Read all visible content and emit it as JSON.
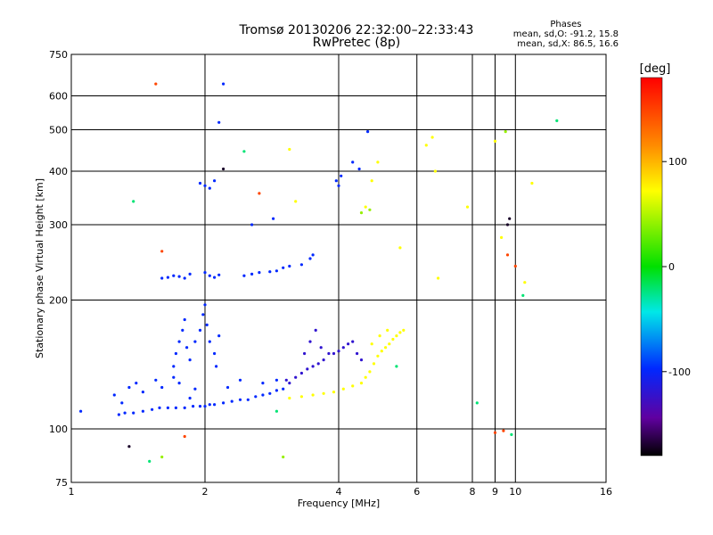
{
  "chart_data": {
    "type": "scatter",
    "title": "Tromsø 20130206 22:32:00–22:33:43",
    "subtitle": "RwPretec (8p)",
    "xlabel": "Frequency [MHz]",
    "ylabel": "Stationary phase Virtual Height [km]",
    "xscale": "log",
    "yscale": "log",
    "xlim": [
      1,
      16
    ],
    "ylim": [
      75,
      750
    ],
    "xticks": [
      1,
      2,
      4,
      6,
      8,
      9,
      10,
      16
    ],
    "xtick_labels": [
      "1",
      "2",
      "4",
      "6",
      "8",
      "9",
      "10",
      "16"
    ],
    "yticks": [
      75,
      100,
      200,
      300,
      400,
      500,
      600,
      750
    ],
    "ytick_labels": [
      "75",
      "100",
      "200",
      "300",
      "400",
      "500",
      "600",
      "750"
    ],
    "grid": true,
    "colorbar": {
      "label": "[deg]",
      "range": [
        -180,
        180
      ],
      "ticks": [
        100,
        0,
        -100
      ],
      "tick_labels": [
        "100",
        "0",
        "-100"
      ]
    },
    "phases_box": {
      "header": "Phases",
      "line1": "mean, sd,O: -91.2, 15.8",
      "line2": "mean, sd,X:  86.5, 16.6"
    },
    "series": [
      {
        "phase": -100,
        "points": [
          [
            1.05,
            110
          ],
          [
            1.28,
            108
          ],
          [
            1.32,
            109
          ],
          [
            1.38,
            109
          ],
          [
            1.45,
            110
          ],
          [
            1.52,
            111
          ],
          [
            1.58,
            112
          ],
          [
            1.65,
            112
          ],
          [
            1.72,
            112
          ],
          [
            1.8,
            112
          ],
          [
            1.88,
            113
          ],
          [
            1.95,
            113
          ],
          [
            2.0,
            113
          ],
          [
            2.05,
            114
          ],
          [
            2.1,
            114
          ],
          [
            2.2,
            115
          ],
          [
            2.3,
            116
          ],
          [
            2.4,
            117
          ],
          [
            2.5,
            117
          ],
          [
            2.6,
            119
          ],
          [
            2.7,
            120
          ],
          [
            2.8,
            121
          ],
          [
            2.9,
            123
          ],
          [
            3.0,
            124
          ]
        ]
      },
      {
        "phase": -100,
        "points": [
          [
            1.25,
            120
          ],
          [
            1.3,
            115
          ],
          [
            1.35,
            125
          ],
          [
            1.4,
            128
          ],
          [
            1.45,
            122
          ],
          [
            1.55,
            130
          ],
          [
            1.6,
            125
          ],
          [
            1.7,
            132
          ],
          [
            1.75,
            128
          ],
          [
            1.85,
            118
          ],
          [
            1.9,
            124
          ],
          [
            2.25,
            125
          ],
          [
            2.4,
            130
          ],
          [
            2.7,
            128
          ],
          [
            2.9,
            130
          ]
        ]
      },
      {
        "phase": -100,
        "points": [
          [
            1.7,
            140
          ],
          [
            1.72,
            150
          ],
          [
            1.75,
            160
          ],
          [
            1.78,
            170
          ],
          [
            1.8,
            180
          ],
          [
            1.82,
            155
          ],
          [
            1.85,
            145
          ],
          [
            1.9,
            160
          ],
          [
            1.95,
            170
          ],
          [
            1.98,
            185
          ],
          [
            2.0,
            195
          ],
          [
            2.02,
            175
          ],
          [
            2.05,
            160
          ],
          [
            2.1,
            150
          ],
          [
            2.12,
            140
          ],
          [
            2.15,
            165
          ]
        ]
      },
      {
        "phase": -100,
        "points": [
          [
            1.6,
            225
          ],
          [
            1.65,
            226
          ],
          [
            1.7,
            228
          ],
          [
            1.75,
            227
          ],
          [
            1.8,
            225
          ],
          [
            1.85,
            230
          ],
          [
            2.0,
            232
          ],
          [
            2.05,
            228
          ],
          [
            2.1,
            226
          ],
          [
            2.15,
            229
          ],
          [
            2.45,
            228
          ],
          [
            2.55,
            230
          ],
          [
            2.65,
            232
          ],
          [
            2.8,
            233
          ],
          [
            2.9,
            234
          ],
          [
            3.0,
            238
          ],
          [
            3.1,
            240
          ],
          [
            3.3,
            242
          ],
          [
            3.45,
            250
          ],
          [
            3.5,
            255
          ]
        ]
      },
      {
        "phase": -100,
        "points": [
          [
            2.0,
            370
          ],
          [
            2.05,
            365
          ],
          [
            2.1,
            380
          ],
          [
            1.95,
            375
          ],
          [
            3.95,
            380
          ],
          [
            4.0,
            370
          ],
          [
            4.05,
            390
          ],
          [
            4.3,
            420
          ],
          [
            4.45,
            405
          ],
          [
            2.15,
            520
          ],
          [
            2.2,
            640
          ],
          [
            2.55,
            300
          ],
          [
            2.85,
            310
          ],
          [
            4.65,
            495
          ]
        ]
      },
      {
        "phase": -120,
        "points": [
          [
            3.05,
            130
          ],
          [
            3.1,
            128
          ],
          [
            3.2,
            132
          ],
          [
            3.3,
            135
          ],
          [
            3.4,
            138
          ],
          [
            3.5,
            140
          ],
          [
            3.6,
            142
          ],
          [
            3.7,
            145
          ],
          [
            3.8,
            150
          ],
          [
            3.9,
            150
          ],
          [
            4.0,
            152
          ],
          [
            4.1,
            155
          ],
          [
            4.2,
            158
          ],
          [
            4.3,
            160
          ],
          [
            3.35,
            150
          ],
          [
            3.45,
            160
          ],
          [
            3.55,
            170
          ],
          [
            3.65,
            155
          ],
          [
            4.4,
            150
          ],
          [
            4.5,
            145
          ]
        ]
      },
      {
        "phase": 90,
        "points": [
          [
            3.1,
            118
          ],
          [
            3.3,
            119
          ],
          [
            3.5,
            120
          ],
          [
            3.7,
            121
          ],
          [
            3.9,
            122
          ],
          [
            4.1,
            124
          ],
          [
            4.3,
            126
          ],
          [
            4.5,
            128
          ],
          [
            4.6,
            132
          ],
          [
            4.7,
            136
          ],
          [
            4.8,
            142
          ],
          [
            4.9,
            148
          ],
          [
            5.0,
            152
          ],
          [
            5.1,
            155
          ],
          [
            5.2,
            158
          ],
          [
            5.3,
            162
          ],
          [
            5.4,
            165
          ],
          [
            5.5,
            168
          ],
          [
            5.6,
            170
          ],
          [
            4.75,
            158
          ],
          [
            4.95,
            165
          ],
          [
            5.15,
            170
          ]
        ]
      },
      {
        "phase": 90,
        "points": [
          [
            3.1,
            450
          ],
          [
            3.2,
            340
          ],
          [
            4.6,
            330
          ],
          [
            4.75,
            380
          ],
          [
            4.9,
            420
          ],
          [
            5.5,
            265
          ],
          [
            6.3,
            460
          ],
          [
            6.5,
            480
          ],
          [
            6.6,
            400
          ],
          [
            6.7,
            225
          ],
          [
            7.8,
            330
          ],
          [
            9.0,
            470
          ],
          [
            9.3,
            280
          ],
          [
            10.5,
            220
          ],
          [
            10.9,
            375
          ]
        ]
      },
      {
        "phase": 40,
        "points": [
          [
            9.5,
            495
          ],
          [
            4.5,
            320
          ],
          [
            4.7,
            325
          ],
          [
            1.6,
            86
          ],
          [
            3.0,
            86
          ]
        ]
      },
      {
        "phase": -170,
        "points": [
          [
            1.35,
            91
          ],
          [
            9.6,
            300
          ],
          [
            9.7,
            310
          ],
          [
            2.2,
            405
          ]
        ]
      },
      {
        "phase": 150,
        "points": [
          [
            1.55,
            640
          ],
          [
            1.6,
            260
          ],
          [
            2.65,
            355
          ],
          [
            9.6,
            255
          ],
          [
            10.0,
            240
          ],
          [
            1.8,
            96
          ],
          [
            9.0,
            98
          ],
          [
            9.4,
            99
          ]
        ]
      },
      {
        "phase": -20,
        "points": [
          [
            1.38,
            340
          ],
          [
            2.45,
            445
          ],
          [
            8.2,
            115
          ],
          [
            9.8,
            97
          ],
          [
            12.4,
            525
          ],
          [
            10.4,
            205
          ],
          [
            5.4,
            140
          ],
          [
            2.9,
            110
          ],
          [
            1.5,
            84
          ]
        ]
      }
    ]
  }
}
